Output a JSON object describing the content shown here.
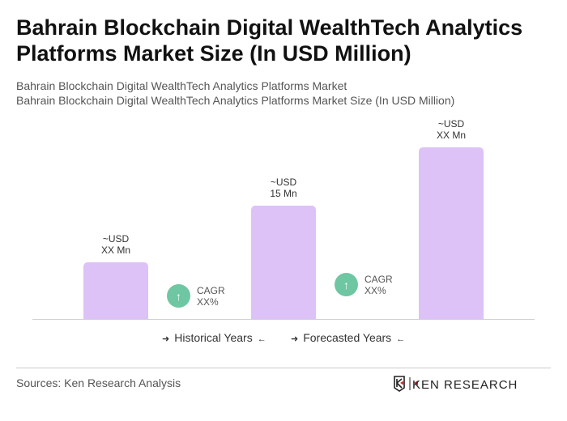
{
  "title": "Bahrain Blockchain Digital WealthTech Analytics Platforms Market Size (In USD Million)",
  "subtitle1": "Bahrain Blockchain Digital WealthTech Analytics Platforms Market",
  "subtitle2": "Bahrain Blockchain Digital WealthTech Analytics Platforms Market Size (In USD Million)",
  "chart_data": {
    "type": "bar",
    "categories": [
      "",
      "",
      ""
    ],
    "values": [
      null,
      15,
      null
    ],
    "data_labels": [
      [
        "~USD",
        "XX Mn"
      ],
      [
        "~USD",
        "15 Mn"
      ],
      [
        "~USD",
        "XX Mn"
      ]
    ],
    "bar_color": "#dcc2f6",
    "grid": false
  },
  "cagr": [
    {
      "label": "CAGR",
      "value": "XX%"
    },
    {
      "label": "CAGR",
      "value": "XX%"
    }
  ],
  "cagr_color": "#6fc6a2",
  "legend": {
    "historical": "Historical Years",
    "forecasted": "Forecasted Years"
  },
  "source": "Sources: Ken Research Analysis",
  "logo_text": "KEN RESEARCH"
}
